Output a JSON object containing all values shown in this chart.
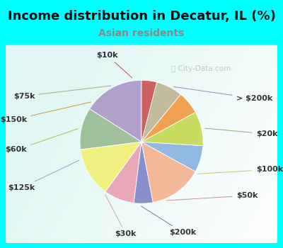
{
  "title": "Income distribution in Decatur, IL (%)",
  "subtitle": "Asian residents",
  "bg_cyan": "#00FFFF",
  "labels": [
    "> $200k",
    "$20k",
    "$100k",
    "$50k",
    "$200k",
    "$30k",
    "$125k",
    "$60k",
    "$150k",
    "$75k",
    "$10k"
  ],
  "values": [
    16,
    11,
    13,
    8,
    5,
    14,
    7,
    9,
    6,
    7,
    4
  ],
  "colors": [
    "#b0a0cc",
    "#9ec09a",
    "#f0f080",
    "#e8a8b8",
    "#8890cc",
    "#f2b898",
    "#90b8e0",
    "#c8dc60",
    "#f0a050",
    "#c0bc9c",
    "#cc6060"
  ],
  "startangle": 90,
  "label_fontsize": 8,
  "title_fontsize": 13,
  "subtitle_fontsize": 10,
  "subtitle_color": "#888888",
  "watermark": "City-Data.com",
  "label_color": "#333333"
}
